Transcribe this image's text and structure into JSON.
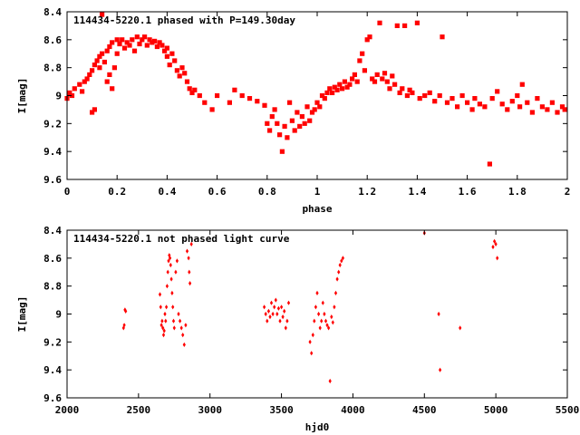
{
  "chart_data": [
    {
      "type": "scatter",
      "title": "114434-5220.1 phased with P=149.30day",
      "xlabel": "phase",
      "ylabel": "I[mag]",
      "xlim": [
        0,
        2
      ],
      "ylim": [
        9.6,
        8.4
      ],
      "y_inverted": true,
      "xticks": [
        0,
        0.2,
        0.4,
        0.6,
        0.8,
        1,
        1.2,
        1.4,
        1.6,
        1.8,
        2
      ],
      "xtick_labels": [
        "0",
        "0.2",
        "0.4",
        "0.6",
        "0.8",
        "1",
        "1.2",
        "1.4",
        "1.6",
        "1.8",
        "2"
      ],
      "yticks": [
        8.4,
        8.6,
        8.8,
        9,
        9.2,
        9.4,
        9.6
      ],
      "ytick_labels": [
        "8.4",
        "8.6",
        "8.8",
        "9",
        "9.2",
        "9.4",
        "9.6"
      ],
      "marker_color": "#ff0000",
      "series": [
        {
          "values": [
            [
              0.0,
              9.02
            ],
            [
              0.01,
              8.98
            ],
            [
              0.02,
              9.0
            ],
            [
              0.03,
              8.95
            ],
            [
              0.05,
              8.92
            ],
            [
              0.06,
              8.97
            ],
            [
              0.07,
              8.9
            ],
            [
              0.08,
              8.88
            ],
            [
              0.09,
              8.85
            ],
            [
              0.1,
              8.82
            ],
            [
              0.1,
              9.12
            ],
            [
              0.11,
              9.1
            ],
            [
              0.11,
              8.78
            ],
            [
              0.12,
              8.75
            ],
            [
              0.13,
              8.8
            ],
            [
              0.13,
              8.72
            ],
            [
              0.14,
              8.7
            ],
            [
              0.14,
              8.42
            ],
            [
              0.15,
              8.76
            ],
            [
              0.16,
              8.68
            ],
            [
              0.16,
              8.9
            ],
            [
              0.17,
              8.65
            ],
            [
              0.17,
              8.85
            ],
            [
              0.18,
              8.62
            ],
            [
              0.18,
              8.95
            ],
            [
              0.19,
              8.8
            ],
            [
              0.2,
              8.6
            ],
            [
              0.2,
              8.7
            ],
            [
              0.21,
              8.63
            ],
            [
              0.22,
              8.6
            ],
            [
              0.23,
              8.66
            ],
            [
              0.24,
              8.62
            ],
            [
              0.25,
              8.64
            ],
            [
              0.26,
              8.6
            ],
            [
              0.27,
              8.68
            ],
            [
              0.28,
              8.58
            ],
            [
              0.29,
              8.63
            ],
            [
              0.3,
              8.6
            ],
            [
              0.31,
              8.58
            ],
            [
              0.32,
              8.64
            ],
            [
              0.33,
              8.6
            ],
            [
              0.34,
              8.62
            ],
            [
              0.35,
              8.61
            ],
            [
              0.36,
              8.65
            ],
            [
              0.37,
              8.62
            ],
            [
              0.38,
              8.64
            ],
            [
              0.39,
              8.68
            ],
            [
              0.4,
              8.66
            ],
            [
              0.4,
              8.72
            ],
            [
              0.41,
              8.78
            ],
            [
              0.42,
              8.7
            ],
            [
              0.43,
              8.75
            ],
            [
              0.44,
              8.82
            ],
            [
              0.45,
              8.86
            ],
            [
              0.46,
              8.8
            ],
            [
              0.47,
              8.84
            ],
            [
              0.48,
              8.9
            ],
            [
              0.49,
              8.95
            ],
            [
              0.5,
              8.98
            ],
            [
              0.51,
              8.96
            ],
            [
              0.53,
              9.0
            ],
            [
              0.55,
              9.05
            ],
            [
              0.58,
              9.1
            ],
            [
              0.6,
              9.0
            ],
            [
              0.65,
              9.05
            ],
            [
              0.67,
              8.96
            ],
            [
              0.7,
              9.0
            ],
            [
              0.73,
              9.02
            ],
            [
              0.76,
              9.04
            ],
            [
              0.79,
              9.07
            ],
            [
              0.8,
              9.2
            ],
            [
              0.81,
              9.25
            ],
            [
              0.82,
              9.15
            ],
            [
              0.83,
              9.1
            ],
            [
              0.84,
              9.2
            ],
            [
              0.85,
              9.28
            ],
            [
              0.86,
              9.4
            ],
            [
              0.87,
              9.22
            ],
            [
              0.88,
              9.3
            ],
            [
              0.89,
              9.05
            ],
            [
              0.9,
              9.18
            ],
            [
              0.91,
              9.25
            ],
            [
              0.92,
              9.12
            ],
            [
              0.93,
              9.22
            ],
            [
              0.94,
              9.15
            ],
            [
              0.95,
              9.2
            ],
            [
              0.96,
              9.08
            ],
            [
              0.97,
              9.18
            ],
            [
              0.98,
              9.12
            ],
            [
              0.99,
              9.1
            ],
            [
              1.0,
              9.05
            ],
            [
              1.01,
              9.08
            ],
            [
              1.02,
              9.0
            ],
            [
              1.03,
              9.02
            ],
            [
              1.04,
              8.98
            ],
            [
              1.05,
              8.95
            ],
            [
              1.06,
              8.98
            ],
            [
              1.07,
              8.94
            ],
            [
              1.08,
              8.96
            ],
            [
              1.09,
              8.92
            ],
            [
              1.1,
              8.95
            ],
            [
              1.11,
              8.9
            ],
            [
              1.12,
              8.94
            ],
            [
              1.13,
              8.92
            ],
            [
              1.14,
              8.88
            ],
            [
              1.15,
              8.85
            ],
            [
              1.16,
              8.9
            ],
            [
              1.17,
              8.75
            ],
            [
              1.18,
              8.7
            ],
            [
              1.19,
              8.82
            ],
            [
              1.2,
              8.6
            ],
            [
              1.21,
              8.58
            ],
            [
              1.22,
              8.88
            ],
            [
              1.23,
              8.9
            ],
            [
              1.24,
              8.85
            ],
            [
              1.25,
              8.48
            ],
            [
              1.26,
              8.88
            ],
            [
              1.27,
              8.84
            ],
            [
              1.28,
              8.9
            ],
            [
              1.29,
              8.95
            ],
            [
              1.3,
              8.86
            ],
            [
              1.31,
              8.92
            ],
            [
              1.32,
              8.5
            ],
            [
              1.33,
              8.98
            ],
            [
              1.34,
              8.95
            ],
            [
              1.35,
              8.5
            ],
            [
              1.36,
              9.0
            ],
            [
              1.37,
              8.96
            ],
            [
              1.38,
              8.98
            ],
            [
              1.4,
              8.48
            ],
            [
              1.41,
              9.02
            ],
            [
              1.43,
              9.0
            ],
            [
              1.45,
              8.98
            ],
            [
              1.47,
              9.04
            ],
            [
              1.49,
              9.0
            ],
            [
              1.5,
              8.58
            ],
            [
              1.52,
              9.05
            ],
            [
              1.54,
              9.02
            ],
            [
              1.56,
              9.08
            ],
            [
              1.58,
              9.0
            ],
            [
              1.6,
              9.05
            ],
            [
              1.62,
              9.1
            ],
            [
              1.63,
              9.02
            ],
            [
              1.65,
              9.06
            ],
            [
              1.67,
              9.08
            ],
            [
              1.69,
              9.49
            ],
            [
              1.7,
              9.02
            ],
            [
              1.72,
              8.97
            ],
            [
              1.74,
              9.06
            ],
            [
              1.76,
              9.1
            ],
            [
              1.78,
              9.04
            ],
            [
              1.8,
              9.0
            ],
            [
              1.81,
              9.08
            ],
            [
              1.82,
              8.92
            ],
            [
              1.84,
              9.05
            ],
            [
              1.86,
              9.12
            ],
            [
              1.88,
              9.02
            ],
            [
              1.9,
              9.08
            ],
            [
              1.92,
              9.1
            ],
            [
              1.94,
              9.05
            ],
            [
              1.96,
              9.12
            ],
            [
              1.98,
              9.08
            ],
            [
              1.99,
              9.1
            ]
          ]
        }
      ]
    },
    {
      "type": "scatter",
      "title": "114434-5220.1 not phased light curve",
      "xlabel": "hjd0",
      "ylabel": "I[mag]",
      "xlim": [
        2000,
        5500
      ],
      "ylim": [
        9.6,
        8.4
      ],
      "y_inverted": true,
      "xticks": [
        2000,
        2500,
        3000,
        3500,
        4000,
        4500,
        5000,
        5500
      ],
      "xtick_labels": [
        "2000",
        "2500",
        "3000",
        "3500",
        "4000",
        "4500",
        "5000",
        "5500"
      ],
      "yticks": [
        8.4,
        8.6,
        8.8,
        9,
        9.2,
        9.4,
        9.6
      ],
      "ytick_labels": [
        "8.4",
        "8.6",
        "8.8",
        "9",
        "9.2",
        "9.4",
        "9.6"
      ],
      "marker_color": "#ff0000",
      "series": [
        {
          "values": [
            [
              2395,
              9.1
            ],
            [
              2400,
              9.08
            ],
            [
              2405,
              8.97
            ],
            [
              2410,
              8.98
            ],
            [
              2650,
              8.86
            ],
            [
              2655,
              8.95
            ],
            [
              2660,
              9.08
            ],
            [
              2665,
              9.05
            ],
            [
              2670,
              9.1
            ],
            [
              2675,
              9.15
            ],
            [
              2680,
              9.12
            ],
            [
              2685,
              9.0
            ],
            [
              2690,
              9.05
            ],
            [
              2695,
              8.95
            ],
            [
              2700,
              8.8
            ],
            [
              2705,
              8.7
            ],
            [
              2710,
              8.62
            ],
            [
              2715,
              8.58
            ],
            [
              2720,
              8.6
            ],
            [
              2725,
              8.65
            ],
            [
              2730,
              8.75
            ],
            [
              2735,
              8.85
            ],
            [
              2740,
              8.95
            ],
            [
              2745,
              9.05
            ],
            [
              2750,
              9.1
            ],
            [
              2760,
              8.7
            ],
            [
              2770,
              8.62
            ],
            [
              2780,
              9.0
            ],
            [
              2790,
              9.05
            ],
            [
              2800,
              9.1
            ],
            [
              2810,
              9.15
            ],
            [
              2820,
              9.22
            ],
            [
              2830,
              9.08
            ],
            [
              2840,
              8.55
            ],
            [
              2850,
              8.6
            ],
            [
              2855,
              8.7
            ],
            [
              2860,
              8.78
            ],
            [
              2870,
              8.5
            ],
            [
              3380,
              8.95
            ],
            [
              3390,
              9.0
            ],
            [
              3400,
              9.05
            ],
            [
              3410,
              8.98
            ],
            [
              3420,
              9.02
            ],
            [
              3430,
              8.92
            ],
            [
              3440,
              9.0
            ],
            [
              3450,
              8.95
            ],
            [
              3460,
              8.9
            ],
            [
              3470,
              9.0
            ],
            [
              3480,
              8.96
            ],
            [
              3490,
              9.05
            ],
            [
              3500,
              8.95
            ],
            [
              3510,
              9.02
            ],
            [
              3520,
              8.98
            ],
            [
              3530,
              9.1
            ],
            [
              3540,
              9.05
            ],
            [
              3550,
              8.92
            ],
            [
              3700,
              9.2
            ],
            [
              3710,
              9.28
            ],
            [
              3720,
              9.15
            ],
            [
              3730,
              9.05
            ],
            [
              3740,
              8.95
            ],
            [
              3750,
              8.85
            ],
            [
              3760,
              9.0
            ],
            [
              3770,
              9.1
            ],
            [
              3780,
              9.05
            ],
            [
              3790,
              8.92
            ],
            [
              3800,
              9.0
            ],
            [
              3810,
              9.05
            ],
            [
              3820,
              9.08
            ],
            [
              3830,
              9.1
            ],
            [
              3840,
              9.48
            ],
            [
              3850,
              9.02
            ],
            [
              3860,
              9.06
            ],
            [
              3870,
              8.95
            ],
            [
              3880,
              8.85
            ],
            [
              3890,
              8.75
            ],
            [
              3900,
              8.7
            ],
            [
              3910,
              8.65
            ],
            [
              3920,
              8.62
            ],
            [
              3930,
              8.6
            ],
            [
              4500,
              8.42
            ],
            [
              4600,
              9.0
            ],
            [
              4610,
              9.4
            ],
            [
              4750,
              9.1
            ],
            [
              4980,
              8.52
            ],
            [
              4990,
              8.48
            ],
            [
              5000,
              8.5
            ],
            [
              5010,
              8.6
            ]
          ]
        }
      ]
    }
  ]
}
